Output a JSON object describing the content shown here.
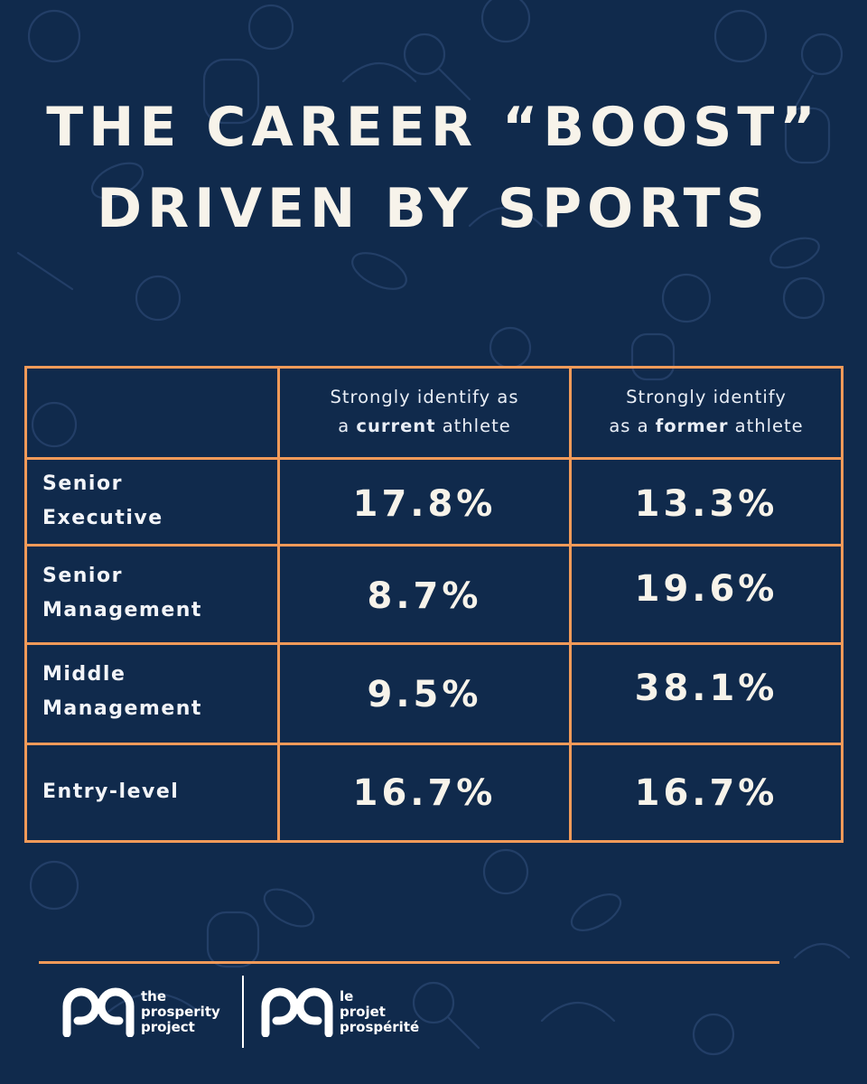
{
  "title": {
    "line1": "THE CAREER “BOOST”",
    "line2": "DRIVEN BY SPORTS"
  },
  "chart_data": {
    "type": "table",
    "columns": [
      {
        "line1": "Strongly identify as",
        "line2_plain": "a ",
        "line2_bold": "current",
        "line2_end": " athlete"
      },
      {
        "line1": "Strongly identify",
        "line2_plain": "as a ",
        "line2_bold": "former",
        "line2_end": " athlete"
      }
    ],
    "rows": [
      {
        "label_line1": "Senior",
        "label_line2": "Executive",
        "current": "17.8%",
        "former": "13.3%"
      },
      {
        "label_line1": "Senior",
        "label_line2": "Management",
        "current": "8.7%",
        "former": "19.6%"
      },
      {
        "label_line1": "Middle",
        "label_line2": "Management",
        "current": "9.5%",
        "former": "38.1%"
      },
      {
        "label_line1": "Entry-level",
        "label_line2": "",
        "current": "16.7%",
        "former": "16.7%"
      }
    ],
    "values": {
      "current_athlete": [
        17.8,
        8.7,
        9.5,
        16.7
      ],
      "former_athlete": [
        13.3,
        19.6,
        38.1,
        16.7
      ]
    }
  },
  "footer": {
    "logo_en": {
      "line1": "the",
      "line2": "prosperity",
      "line3": "project"
    },
    "logo_fr": {
      "line1": "le",
      "line2": "projet",
      "line3": "prospérité"
    }
  },
  "colors": {
    "background": "#102a4c",
    "accent": "#f29a59",
    "text": "#f7f3ea"
  }
}
